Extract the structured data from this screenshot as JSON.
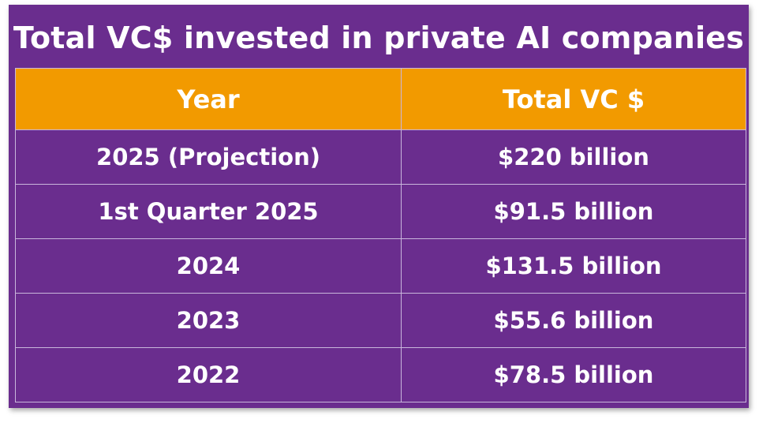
{
  "chart_data": {
    "type": "table",
    "title": "Total VC$ invested in private AI companies",
    "columns": [
      "Year",
      "Total VC $"
    ],
    "rows": [
      [
        "2025 (Projection)",
        "$220 billion"
      ],
      [
        "1st Quarter 2025",
        "$91.5 billion"
      ],
      [
        "2024",
        "$131.5 billion"
      ],
      [
        "2023",
        "$55.6 billion"
      ],
      [
        "2022",
        "$78.5 billion"
      ]
    ]
  },
  "colors": {
    "background": "#6a2d8e",
    "header": "#f29a00",
    "text": "#ffffff",
    "grid_lines": "#c9b6dc"
  }
}
